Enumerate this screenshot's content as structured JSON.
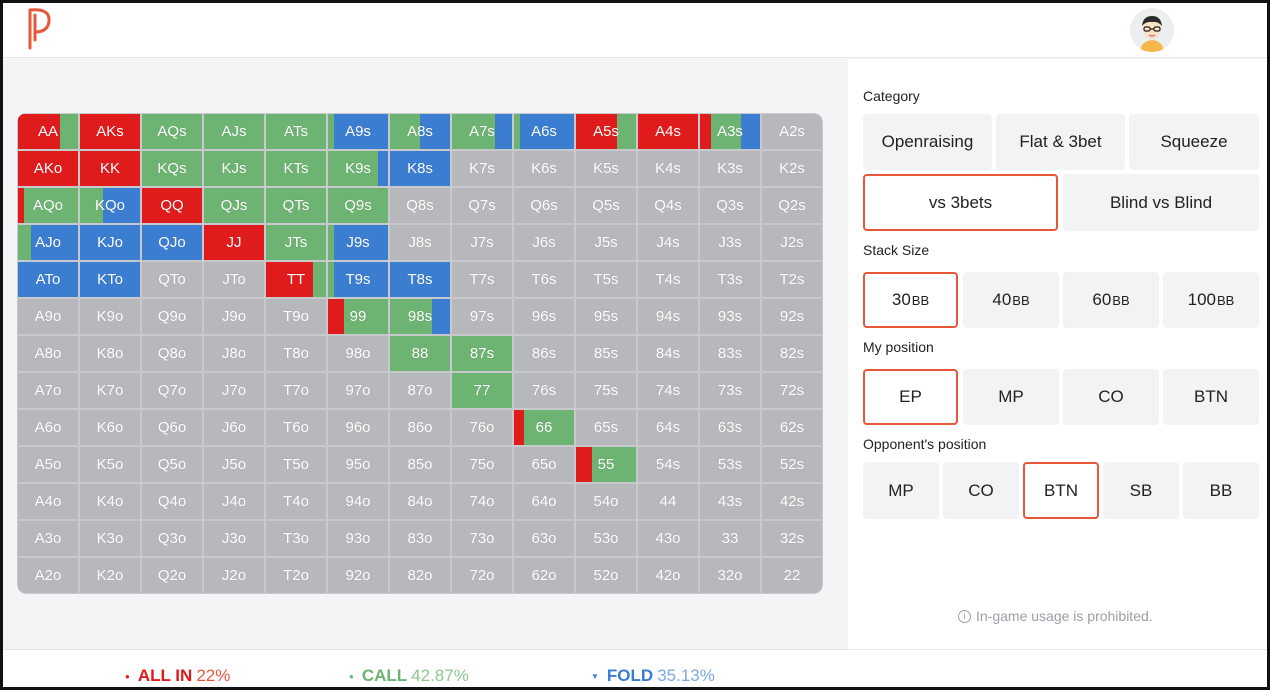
{
  "colors": {
    "allin": "#e01b1b",
    "call": "#6db372",
    "fold": "#3b7dd0",
    "empty": "#b7b8bb",
    "accent": "#e8573a"
  },
  "header": {
    "logo": "P",
    "avatar": "user-avatar"
  },
  "grid": [
    [
      {
        "l": "AA",
        "s": [
          [
            "r",
            0.7
          ],
          [
            "g",
            0.3
          ]
        ]
      },
      {
        "l": "AKs",
        "s": [
          [
            "r",
            1
          ]
        ]
      },
      {
        "l": "AQs",
        "s": [
          [
            "g",
            1
          ]
        ]
      },
      {
        "l": "AJs",
        "s": [
          [
            "g",
            1
          ]
        ]
      },
      {
        "l": "ATs",
        "s": [
          [
            "g",
            1
          ]
        ]
      },
      {
        "l": "A9s",
        "s": [
          [
            "g",
            0.1
          ],
          [
            "b",
            0.9
          ]
        ]
      },
      {
        "l": "A8s",
        "s": [
          [
            "g",
            0.5
          ],
          [
            "b",
            0.5
          ]
        ]
      },
      {
        "l": "A7s",
        "s": [
          [
            "g",
            0.72
          ],
          [
            "b",
            0.28
          ]
        ]
      },
      {
        "l": "A6s",
        "s": [
          [
            "g",
            0.1
          ],
          [
            "b",
            0.9
          ]
        ]
      },
      {
        "l": "A5s",
        "s": [
          [
            "r",
            0.68
          ],
          [
            "g",
            0.32
          ]
        ]
      },
      {
        "l": "A4s",
        "s": [
          [
            "r",
            1
          ]
        ]
      },
      {
        "l": "A3s",
        "s": [
          [
            "r",
            0.18
          ],
          [
            "g",
            0.5
          ],
          [
            "b",
            0.32
          ]
        ]
      },
      {
        "l": "A2s",
        "s": []
      }
    ],
    [
      {
        "l": "AKo",
        "s": [
          [
            "r",
            1
          ]
        ]
      },
      {
        "l": "KK",
        "s": [
          [
            "r",
            1
          ]
        ]
      },
      {
        "l": "KQs",
        "s": [
          [
            "g",
            1
          ]
        ]
      },
      {
        "l": "KJs",
        "s": [
          [
            "g",
            1
          ]
        ]
      },
      {
        "l": "KTs",
        "s": [
          [
            "g",
            1
          ]
        ]
      },
      {
        "l": "K9s",
        "s": [
          [
            "g",
            0.83
          ],
          [
            "b",
            0.17
          ]
        ]
      },
      {
        "l": "K8s",
        "s": [
          [
            "b",
            1
          ]
        ]
      },
      {
        "l": "K7s",
        "s": []
      },
      {
        "l": "K6s",
        "s": []
      },
      {
        "l": "K5s",
        "s": []
      },
      {
        "l": "K4s",
        "s": []
      },
      {
        "l": "K3s",
        "s": []
      },
      {
        "l": "K2s",
        "s": []
      }
    ],
    [
      {
        "l": "AQo",
        "s": [
          [
            "r",
            0.1
          ],
          [
            "g",
            0.9
          ]
        ]
      },
      {
        "l": "KQo",
        "s": [
          [
            "g",
            0.38
          ],
          [
            "b",
            0.62
          ]
        ]
      },
      {
        "l": "QQ",
        "s": [
          [
            "r",
            1
          ]
        ]
      },
      {
        "l": "QJs",
        "s": [
          [
            "g",
            1
          ]
        ]
      },
      {
        "l": "QTs",
        "s": [
          [
            "g",
            1
          ]
        ]
      },
      {
        "l": "Q9s",
        "s": [
          [
            "g",
            1
          ]
        ]
      },
      {
        "l": "Q8s",
        "s": []
      },
      {
        "l": "Q7s",
        "s": []
      },
      {
        "l": "Q6s",
        "s": []
      },
      {
        "l": "Q5s",
        "s": []
      },
      {
        "l": "Q4s",
        "s": []
      },
      {
        "l": "Q3s",
        "s": []
      },
      {
        "l": "Q2s",
        "s": []
      }
    ],
    [
      {
        "l": "AJo",
        "s": [
          [
            "g",
            0.22
          ],
          [
            "b",
            0.78
          ]
        ]
      },
      {
        "l": "KJo",
        "s": [
          [
            "b",
            1
          ]
        ]
      },
      {
        "l": "QJo",
        "s": [
          [
            "b",
            1
          ]
        ]
      },
      {
        "l": "JJ",
        "s": [
          [
            "r",
            1
          ]
        ]
      },
      {
        "l": "JTs",
        "s": [
          [
            "g",
            1
          ]
        ]
      },
      {
        "l": "J9s",
        "s": [
          [
            "g",
            0.1
          ],
          [
            "b",
            0.9
          ]
        ]
      },
      {
        "l": "J8s",
        "s": []
      },
      {
        "l": "J7s",
        "s": []
      },
      {
        "l": "J6s",
        "s": []
      },
      {
        "l": "J5s",
        "s": []
      },
      {
        "l": "J4s",
        "s": []
      },
      {
        "l": "J3s",
        "s": []
      },
      {
        "l": "J2s",
        "s": []
      }
    ],
    [
      {
        "l": "ATo",
        "s": [
          [
            "b",
            1
          ]
        ]
      },
      {
        "l": "KTo",
        "s": [
          [
            "b",
            1
          ]
        ]
      },
      {
        "l": "QTo",
        "s": []
      },
      {
        "l": "JTo",
        "s": []
      },
      {
        "l": "TT",
        "s": [
          [
            "r",
            0.78
          ],
          [
            "g",
            0.22
          ]
        ]
      },
      {
        "l": "T9s",
        "s": [
          [
            "g",
            0.1
          ],
          [
            "b",
            0.9
          ]
        ]
      },
      {
        "l": "T8s",
        "s": [
          [
            "b",
            1
          ]
        ]
      },
      {
        "l": "T7s",
        "s": []
      },
      {
        "l": "T6s",
        "s": []
      },
      {
        "l": "T5s",
        "s": []
      },
      {
        "l": "T4s",
        "s": []
      },
      {
        "l": "T3s",
        "s": []
      },
      {
        "l": "T2s",
        "s": []
      }
    ],
    [
      {
        "l": "A9o",
        "s": []
      },
      {
        "l": "K9o",
        "s": []
      },
      {
        "l": "Q9o",
        "s": []
      },
      {
        "l": "J9o",
        "s": []
      },
      {
        "l": "T9o",
        "s": []
      },
      {
        "l": "99",
        "s": [
          [
            "r",
            0.27
          ],
          [
            "g",
            0.73
          ]
        ]
      },
      {
        "l": "98s",
        "s": [
          [
            "g",
            0.7
          ],
          [
            "b",
            0.3
          ]
        ]
      },
      {
        "l": "97s",
        "s": []
      },
      {
        "l": "96s",
        "s": []
      },
      {
        "l": "95s",
        "s": []
      },
      {
        "l": "94s",
        "s": []
      },
      {
        "l": "93s",
        "s": []
      },
      {
        "l": "92s",
        "s": []
      }
    ],
    [
      {
        "l": "A8o",
        "s": []
      },
      {
        "l": "K8o",
        "s": []
      },
      {
        "l": "Q8o",
        "s": []
      },
      {
        "l": "J8o",
        "s": []
      },
      {
        "l": "T8o",
        "s": []
      },
      {
        "l": "98o",
        "s": []
      },
      {
        "l": "88",
        "s": [
          [
            "g",
            1
          ]
        ]
      },
      {
        "l": "87s",
        "s": [
          [
            "g",
            1
          ]
        ]
      },
      {
        "l": "86s",
        "s": []
      },
      {
        "l": "85s",
        "s": []
      },
      {
        "l": "84s",
        "s": []
      },
      {
        "l": "83s",
        "s": []
      },
      {
        "l": "82s",
        "s": []
      }
    ],
    [
      {
        "l": "A7o",
        "s": []
      },
      {
        "l": "K7o",
        "s": []
      },
      {
        "l": "Q7o",
        "s": []
      },
      {
        "l": "J7o",
        "s": []
      },
      {
        "l": "T7o",
        "s": []
      },
      {
        "l": "97o",
        "s": []
      },
      {
        "l": "87o",
        "s": []
      },
      {
        "l": "77",
        "s": [
          [
            "g",
            1
          ]
        ]
      },
      {
        "l": "76s",
        "s": []
      },
      {
        "l": "75s",
        "s": []
      },
      {
        "l": "74s",
        "s": []
      },
      {
        "l": "73s",
        "s": []
      },
      {
        "l": "72s",
        "s": []
      }
    ],
    [
      {
        "l": "A6o",
        "s": []
      },
      {
        "l": "K6o",
        "s": []
      },
      {
        "l": "Q6o",
        "s": []
      },
      {
        "l": "J6o",
        "s": []
      },
      {
        "l": "T6o",
        "s": []
      },
      {
        "l": "96o",
        "s": []
      },
      {
        "l": "86o",
        "s": []
      },
      {
        "l": "76o",
        "s": []
      },
      {
        "l": "66",
        "s": [
          [
            "r",
            0.17
          ],
          [
            "g",
            0.83
          ]
        ]
      },
      {
        "l": "65s",
        "s": []
      },
      {
        "l": "64s",
        "s": []
      },
      {
        "l": "63s",
        "s": []
      },
      {
        "l": "62s",
        "s": []
      }
    ],
    [
      {
        "l": "A5o",
        "s": []
      },
      {
        "l": "K5o",
        "s": []
      },
      {
        "l": "Q5o",
        "s": []
      },
      {
        "l": "J5o",
        "s": []
      },
      {
        "l": "T5o",
        "s": []
      },
      {
        "l": "95o",
        "s": []
      },
      {
        "l": "85o",
        "s": []
      },
      {
        "l": "75o",
        "s": []
      },
      {
        "l": "65o",
        "s": []
      },
      {
        "l": "55",
        "s": [
          [
            "r",
            0.27
          ],
          [
            "g",
            0.73
          ]
        ]
      },
      {
        "l": "54s",
        "s": []
      },
      {
        "l": "53s",
        "s": []
      },
      {
        "l": "52s",
        "s": []
      }
    ],
    [
      {
        "l": "A4o",
        "s": []
      },
      {
        "l": "K4o",
        "s": []
      },
      {
        "l": "Q4o",
        "s": []
      },
      {
        "l": "J4o",
        "s": []
      },
      {
        "l": "T4o",
        "s": []
      },
      {
        "l": "94o",
        "s": []
      },
      {
        "l": "84o",
        "s": []
      },
      {
        "l": "74o",
        "s": []
      },
      {
        "l": "64o",
        "s": []
      },
      {
        "l": "54o",
        "s": []
      },
      {
        "l": "44",
        "s": []
      },
      {
        "l": "43s",
        "s": []
      },
      {
        "l": "42s",
        "s": []
      }
    ],
    [
      {
        "l": "A3o",
        "s": []
      },
      {
        "l": "K3o",
        "s": []
      },
      {
        "l": "Q3o",
        "s": []
      },
      {
        "l": "J3o",
        "s": []
      },
      {
        "l": "T3o",
        "s": []
      },
      {
        "l": "93o",
        "s": []
      },
      {
        "l": "83o",
        "s": []
      },
      {
        "l": "73o",
        "s": []
      },
      {
        "l": "63o",
        "s": []
      },
      {
        "l": "53o",
        "s": []
      },
      {
        "l": "43o",
        "s": []
      },
      {
        "l": "33",
        "s": []
      },
      {
        "l": "32s",
        "s": []
      }
    ],
    [
      {
        "l": "A2o",
        "s": []
      },
      {
        "l": "K2o",
        "s": []
      },
      {
        "l": "Q2o",
        "s": []
      },
      {
        "l": "J2o",
        "s": []
      },
      {
        "l": "T2o",
        "s": []
      },
      {
        "l": "92o",
        "s": []
      },
      {
        "l": "82o",
        "s": []
      },
      {
        "l": "72o",
        "s": []
      },
      {
        "l": "62o",
        "s": []
      },
      {
        "l": "52o",
        "s": []
      },
      {
        "l": "42o",
        "s": []
      },
      {
        "l": "32o",
        "s": []
      },
      {
        "l": "22",
        "s": []
      }
    ]
  ],
  "panel": {
    "category": {
      "title": "Category",
      "options": [
        "Openraising",
        "Flat & 3bet",
        "Squeeze",
        "vs 3bets",
        "Blind vs Blind"
      ],
      "selected": "vs 3bets"
    },
    "stack": {
      "title": "Stack Size",
      "options": [
        {
          "num": "30",
          "unit": "BB"
        },
        {
          "num": "40",
          "unit": "BB"
        },
        {
          "num": "60",
          "unit": "BB"
        },
        {
          "num": "100",
          "unit": "BB"
        }
      ],
      "selected": "30"
    },
    "position": {
      "title": "My position",
      "options": [
        "EP",
        "MP",
        "CO",
        "BTN"
      ],
      "selected": "EP"
    },
    "opponent": {
      "title": "Opponent's position",
      "options": [
        "MP",
        "CO",
        "BTN",
        "SB",
        "BB"
      ],
      "selected": "BTN"
    },
    "notice": "In-game usage is prohibited."
  },
  "footer": {
    "allin": {
      "label": "ALL IN",
      "value": "22%"
    },
    "call": {
      "label": "CALL",
      "value": "42.87%"
    },
    "fold": {
      "label": "FOLD",
      "value": "35.13%"
    }
  }
}
